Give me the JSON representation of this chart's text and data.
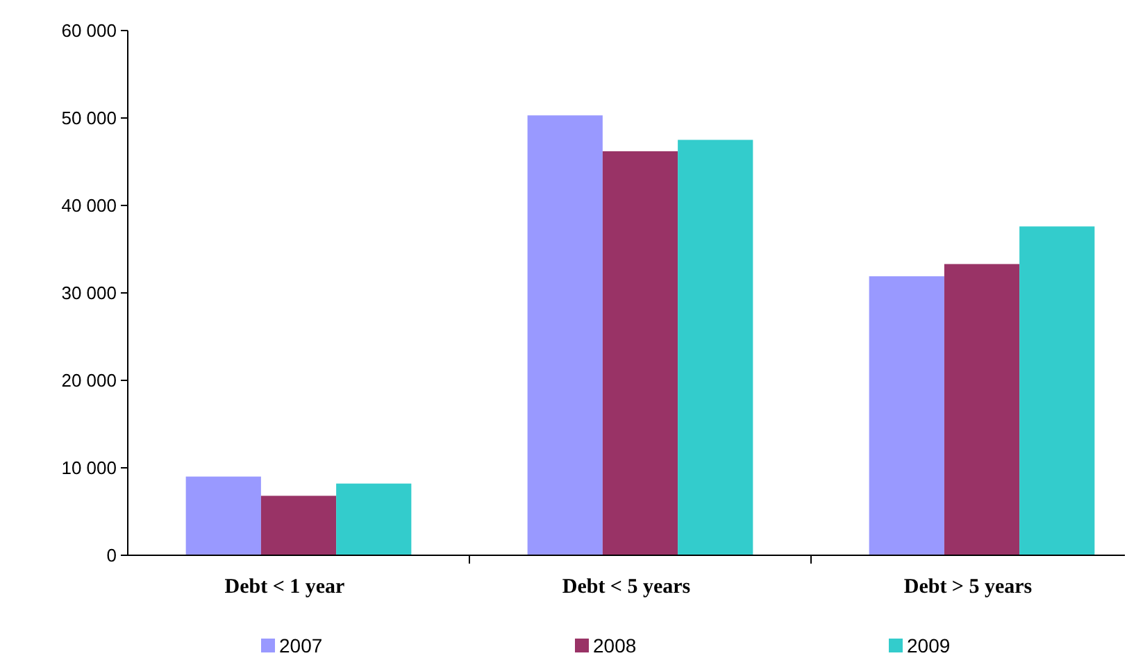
{
  "chart_data": {
    "type": "bar",
    "categories": [
      "Debt < 1 year",
      "Debt < 5 years",
      "Debt > 5 years"
    ],
    "series": [
      {
        "name": "2007",
        "color": "#9999ff",
        "values": [
          9000,
          50300,
          31900
        ]
      },
      {
        "name": "2008",
        "color": "#993366",
        "values": [
          6800,
          46200,
          33300
        ]
      },
      {
        "name": "2009",
        "color": "#33cccc",
        "values": [
          8200,
          47500,
          37600
        ]
      }
    ],
    "ylim": [
      0,
      60000
    ],
    "yticks": [
      {
        "value": 0,
        "label": "0"
      },
      {
        "value": 10000,
        "label": "10 000"
      },
      {
        "value": 20000,
        "label": "20 000"
      },
      {
        "value": 30000,
        "label": "30 000"
      },
      {
        "value": 40000,
        "label": "40 000"
      },
      {
        "value": 50000,
        "label": "50 000"
      },
      {
        "value": 60000,
        "label": "60 000"
      }
    ],
    "grid": false,
    "legend": "bottom"
  }
}
